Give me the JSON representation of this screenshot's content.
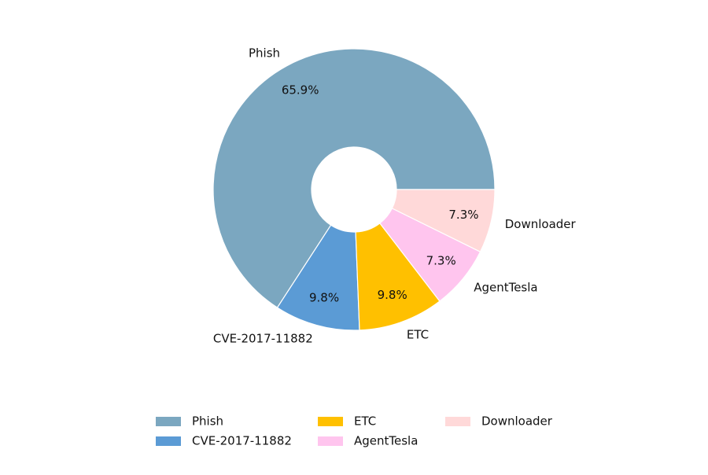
{
  "chart_data": {
    "type": "donut",
    "categories": [
      "Phish",
      "CVE-2017-11882",
      "ETC",
      "AgentTesla",
      "Downloader"
    ],
    "values": [
      65.9,
      9.8,
      9.8,
      7.3,
      7.3
    ],
    "value_labels": [
      "65.9%",
      "9.8%",
      "9.8%",
      "7.3%",
      "7.3%"
    ],
    "colors": [
      "#7ba7c0",
      "#5b9bd5",
      "#ffc000",
      "#ffc5ee",
      "#ffd9d9"
    ],
    "legend": "bottom"
  }
}
